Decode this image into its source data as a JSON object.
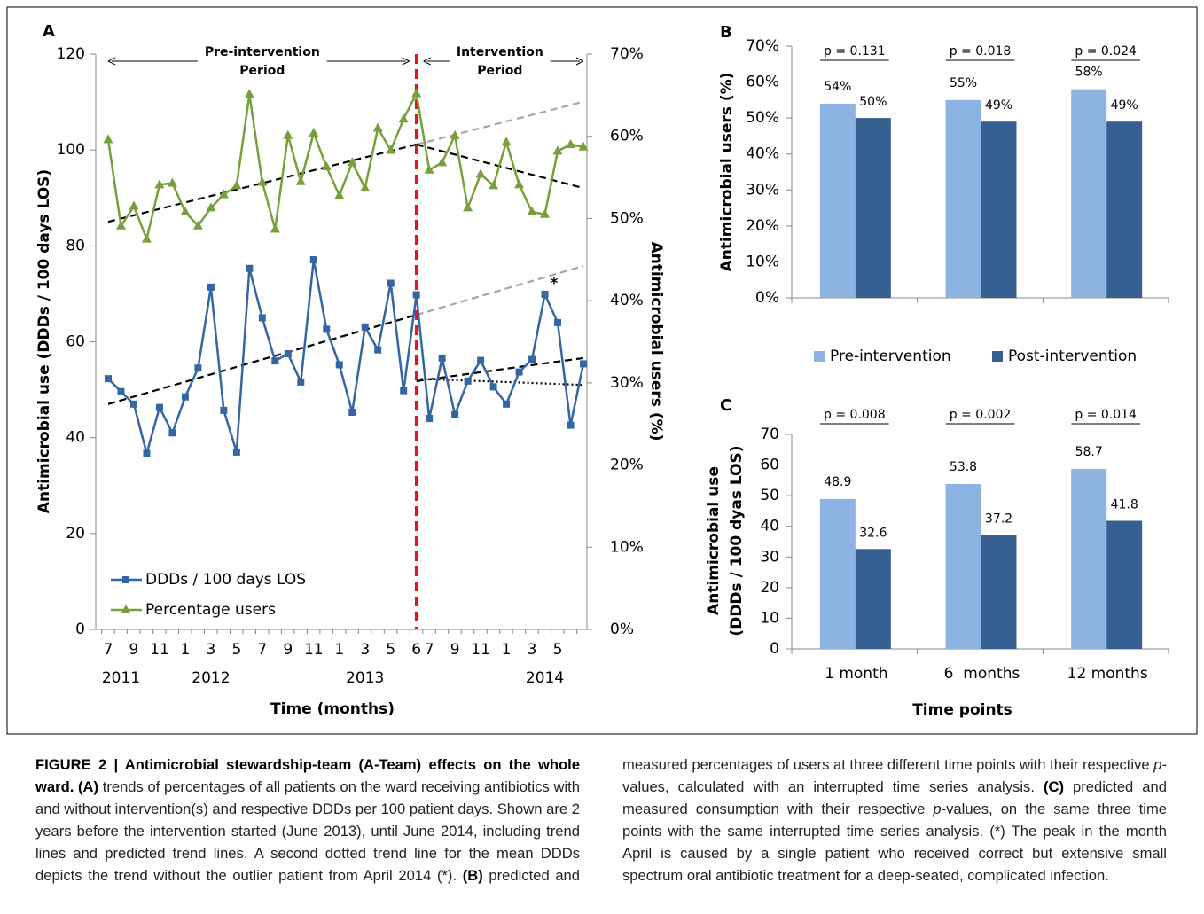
{
  "chart_data": [
    {
      "type": "line",
      "panel": "A",
      "xlabel": "Time (months)",
      "ylabel": "Antimicrobial use (DDDs / 100 days LOS)",
      "y2label": "Antimicrobial users (%)",
      "categories": [
        "7",
        null,
        "9",
        null,
        "11",
        null,
        "1",
        null,
        "3",
        null,
        "5",
        null,
        "7",
        null,
        "9",
        null,
        "11",
        null,
        "1",
        null,
        "3",
        null,
        "5",
        null,
        "6",
        "7",
        null,
        "9",
        null,
        "11",
        null,
        "1",
        null,
        "3",
        null,
        "5",
        null,
        null
      ],
      "year_categories": [
        null,
        "2011",
        null,
        null,
        null,
        null,
        null,
        null,
        "2012",
        null,
        null,
        null,
        null,
        null,
        null,
        null,
        null,
        null,
        null,
        null,
        "2013",
        null,
        null,
        null,
        null,
        null,
        null,
        null,
        null,
        null,
        null,
        null,
        null,
        null,
        "2014",
        null,
        null,
        null
      ],
      "ylim": [
        0,
        120
      ],
      "yticks": [
        0,
        20,
        40,
        60,
        80,
        100,
        120
      ],
      "y2lim": [
        0,
        70
      ],
      "y2ticks": [
        {
          "value": 0,
          "label": "0%"
        },
        {
          "value": 10,
          "label": "10%"
        },
        {
          "value": 20,
          "label": "20%"
        },
        {
          "value": 30,
          "label": "30%"
        },
        {
          "value": 40,
          "label": "40%"
        },
        {
          "value": 50,
          "label": "50%"
        },
        {
          "value": 60,
          "label": "60%"
        },
        {
          "value": 70,
          "label": "70%"
        }
      ],
      "series": [
        {
          "name": "DDDs / 100 days LOS",
          "color": "#3465a4",
          "marker": "square",
          "values": [
            52.3,
            49.6,
            47,
            36.7,
            46.3,
            41,
            48.5,
            54.5,
            71.4,
            45.7,
            37,
            75.3,
            65,
            56,
            57.5,
            51.6,
            77.1,
            62.6,
            55.2,
            45.3,
            63.1,
            58.3,
            72.2,
            49.8,
            69.8,
            44,
            56.6,
            44.8,
            51.8,
            56.1,
            50.6,
            47,
            53.7,
            56.3,
            69.9,
            64,
            42.6,
            55.4
          ]
        },
        {
          "name": "Percentage users",
          "color": "#77a03a",
          "marker": "triangle",
          "axis": "y2",
          "values": [
            59.6,
            49.1,
            51.5,
            47.5,
            54.1,
            54.3,
            50.8,
            49.1,
            51.3,
            52.9,
            54,
            65.1,
            54.4,
            48.7,
            60.1,
            54.5,
            60.4,
            56.3,
            52.8,
            56.8,
            53.7,
            61,
            58.3,
            62.1,
            65.2,
            55.9,
            56.8,
            60.1,
            51.3,
            55.4,
            54,
            59.3,
            54.1,
            50.8,
            50.5,
            58.2,
            59,
            58.7
          ]
        }
      ],
      "trend_lines": [
        {
          "x": [
            0,
            24
          ],
          "values": [
            47,
            65.6
          ],
          "color": "#000000",
          "style": "dashed"
        },
        {
          "x": [
            24,
            37
          ],
          "values": [
            65.6,
            75.8
          ],
          "color": "#a6a6a6",
          "style": "dashed"
        },
        {
          "x": [
            24,
            37
          ],
          "values": [
            51.8,
            56.6
          ],
          "color": "#000000",
          "style": "dashed"
        },
        {
          "x": [
            24,
            37
          ],
          "values": [
            52.3,
            51
          ],
          "color": "#000000",
          "style": "dotted"
        },
        {
          "x": [
            0,
            24
          ],
          "values": [
            49.6,
            59
          ],
          "color": "#000000",
          "style": "dashed",
          "axis": "y2"
        },
        {
          "x": [
            24,
            37
          ],
          "values": [
            59,
            64.2
          ],
          "color": "#a6a6a6",
          "style": "dashed",
          "axis": "y2"
        },
        {
          "x": [
            24,
            37
          ],
          "values": [
            59,
            53.7
          ],
          "color": "#000000",
          "style": "dashed",
          "axis": "y2"
        }
      ],
      "intervention_line": {
        "at": 24,
        "color": "#e8141b"
      },
      "periods": [
        {
          "label": [
            "Pre-intervention",
            "Period"
          ],
          "from": 0,
          "to": 24
        },
        {
          "label": [
            "Intervention",
            "Period"
          ],
          "from": 24,
          "to": 37
        }
      ],
      "annotations": [
        {
          "text": "*",
          "at": 34
        }
      ],
      "legend": "lower left"
    },
    {
      "type": "bar",
      "panel": "B",
      "ylabel": "Antimicrobial users (%)",
      "ylim": [
        0,
        70
      ],
      "yticks": [
        {
          "value": 0,
          "label": "0%"
        },
        {
          "value": 10,
          "label": "10%"
        },
        {
          "value": 20,
          "label": "20%"
        },
        {
          "value": 30,
          "label": "30%"
        },
        {
          "value": 40,
          "label": "40%"
        },
        {
          "value": 50,
          "label": "50%"
        },
        {
          "value": 60,
          "label": "60%"
        },
        {
          "value": 70,
          "label": "70%"
        }
      ],
      "series": [
        {
          "name": "Pre-intervention",
          "color": "#8db3e2",
          "values": [
            54,
            55,
            58
          ],
          "value_labels": [
            "54%",
            "55%",
            "58%"
          ]
        },
        {
          "name": "Post-intervention",
          "color": "#366092",
          "values": [
            50,
            49,
            49
          ],
          "value_labels": [
            "50%",
            "49%",
            "49%"
          ]
        }
      ],
      "p_values": [
        "p = 0.131",
        "p = 0.018",
        "p = 0.024"
      ],
      "legend": "bottom"
    },
    {
      "type": "bar",
      "panel": "C",
      "categories": [
        "1 month",
        "6  months",
        "12 months"
      ],
      "xlabel": "Time points",
      "ylabel": [
        "Antimicrobial use",
        "(DDDs / 100 dyas LOS)"
      ],
      "ylim": [
        0,
        70
      ],
      "yticks": [
        0,
        10,
        20,
        30,
        40,
        50,
        60,
        70
      ],
      "series": [
        {
          "color": "#8db3e2",
          "values": [
            48.9,
            53.8,
            58.7
          ]
        },
        {
          "color": "#366092",
          "values": [
            32.6,
            37.2,
            41.8
          ]
        }
      ],
      "p_values": [
        "p = 0.008",
        "p = 0.002",
        "p = 0.014"
      ]
    }
  ],
  "caption": {
    "segments": [
      {
        "text": "FIGURE 2 | Antimicrobial stewardship-team (A-Team) effects on the whole ward. (A)",
        "bold": true
      },
      {
        "text": " trends of percentages of all patients on the ward receiving antibiotics with and without intervention(s) and respective DDDs per 100 patient days. Shown are 2 years before the intervention started (June 2013), until June 2014, including trend lines and predicted trend lines. A second dotted trend line for the mean DDDs depicts the trend without the outlier patient from April 2014 (*). "
      },
      {
        "text": "(B)",
        "bold": true
      },
      {
        "text": " predicted and measured percentages of users at three different time points with their respective "
      },
      {
        "text": "p",
        "italic": true
      },
      {
        "text": "-values, calculated with an interrupted time series analysis. "
      },
      {
        "text": "(C)",
        "bold": true
      },
      {
        "text": " predicted and measured consumption with their respective "
      },
      {
        "text": "p",
        "italic": true
      },
      {
        "text": "-values, on the same three time points with the same interrupted time series analysis. (*) The peak in the month April is caused by a single patient who received correct but extensive small spectrum oral antibiotic treatment for a deep-seated, complicated infection."
      }
    ]
  }
}
